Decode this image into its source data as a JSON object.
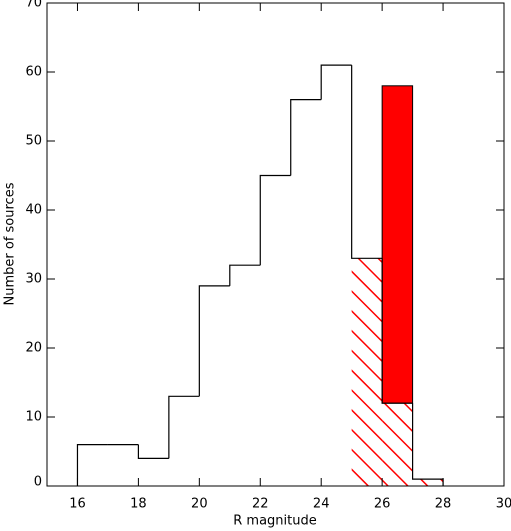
{
  "chart_data": {
    "type": "histogram",
    "xlabel": "R magnitude",
    "ylabel": "Number of sources",
    "xlim": [
      15,
      30
    ],
    "ylim": [
      0,
      70
    ],
    "xticks": [
      16,
      18,
      20,
      22,
      24,
      26,
      28,
      30
    ],
    "yticks": [
      0,
      10,
      20,
      30,
      40,
      50,
      60,
      70
    ],
    "bins": [
      16,
      17,
      18,
      19,
      20,
      21,
      22,
      23,
      24,
      25,
      26,
      27,
      28
    ],
    "counts": [
      6,
      6,
      4,
      13,
      29,
      32,
      45,
      56,
      61,
      33,
      12,
      1
    ],
    "color": "#000000",
    "hatched": {
      "bins": [
        25,
        26,
        27,
        28
      ],
      "counts": [
        33,
        12,
        1
      ],
      "color": "#ff0000"
    },
    "bars": [
      {
        "x0": 26,
        "x1": 27,
        "low": 12,
        "high": 58,
        "color": "#ff0000"
      }
    ]
  }
}
